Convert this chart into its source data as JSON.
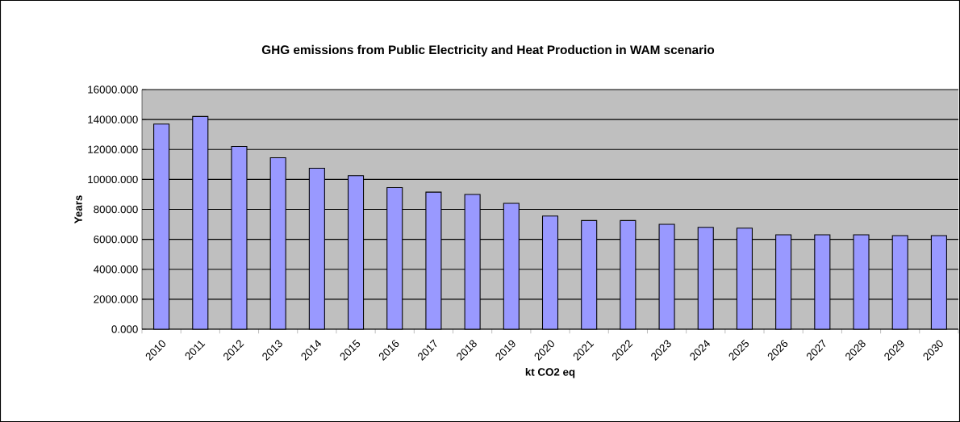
{
  "chart_data": {
    "type": "bar",
    "title": "GHG emissions from Public Electricity and Heat Production in WAM scenario",
    "xlabel": "kt CO2 eq",
    "ylabel": "Years",
    "categories": [
      "2010",
      "2011",
      "2012",
      "2013",
      "2014",
      "2015",
      "2016",
      "2017",
      "2018",
      "2019",
      "2020",
      "2021",
      "2022",
      "2023",
      "2024",
      "2025",
      "2026",
      "2027",
      "2028",
      "2029",
      "2030"
    ],
    "values": [
      13700,
      14200,
      12200,
      11450,
      10750,
      10250,
      9450,
      9150,
      9000,
      8400,
      7550,
      7250,
      7250,
      7000,
      6800,
      6750,
      6300,
      6300,
      6300,
      6250,
      6250
    ],
    "color": "#9999ff",
    "ylim": [
      0,
      16000
    ],
    "yticks": [
      {
        "value": 0,
        "label": "0.000"
      },
      {
        "value": 2000,
        "label": "2000.000"
      },
      {
        "value": 4000,
        "label": "4000.000"
      },
      {
        "value": 6000,
        "label": "6000.000"
      },
      {
        "value": 8000,
        "label": "8000.000"
      },
      {
        "value": 10000,
        "label": "10000.000"
      },
      {
        "value": 12000,
        "label": "12000.000"
      },
      {
        "value": 14000,
        "label": "14000.000"
      },
      {
        "value": 16000,
        "label": "16000.000"
      }
    ],
    "grid": "y"
  }
}
